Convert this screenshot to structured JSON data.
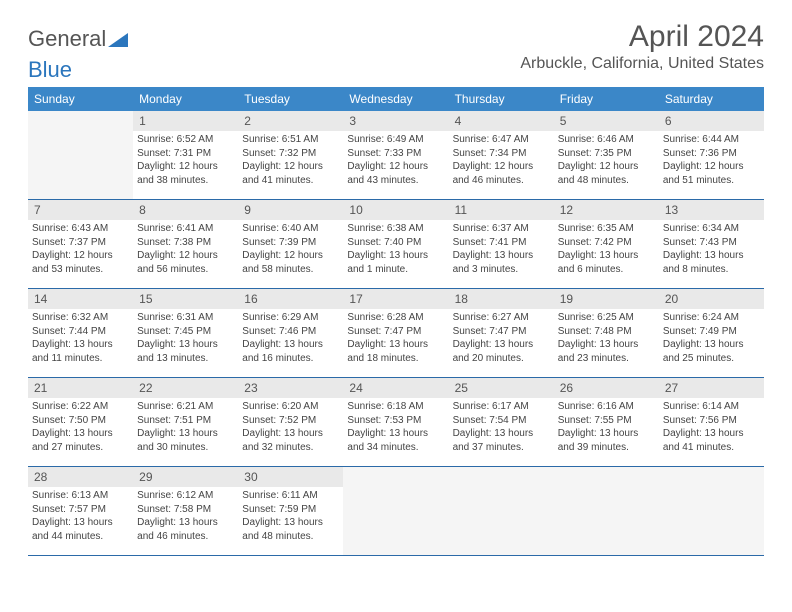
{
  "brand": {
    "part1": "General",
    "part2": "Blue"
  },
  "title": "April 2024",
  "location": "Arbuckle, California, United States",
  "dayHeaders": [
    "Sunday",
    "Monday",
    "Tuesday",
    "Wednesday",
    "Thursday",
    "Friday",
    "Saturday"
  ],
  "colors": {
    "header_bg": "#3b87c8",
    "header_text": "#ffffff",
    "daynum_bg": "#e9e9e9",
    "rule": "#2b6aa8",
    "brand_blue": "#2b76bd"
  },
  "calendar": {
    "leadingBlanks": 1,
    "daysInMonth": 30,
    "trailingBlanks": 4,
    "days": [
      {
        "n": 1,
        "sunrise": "6:52 AM",
        "sunset": "7:31 PM",
        "daylight": "12 hours and 38 minutes."
      },
      {
        "n": 2,
        "sunrise": "6:51 AM",
        "sunset": "7:32 PM",
        "daylight": "12 hours and 41 minutes."
      },
      {
        "n": 3,
        "sunrise": "6:49 AM",
        "sunset": "7:33 PM",
        "daylight": "12 hours and 43 minutes."
      },
      {
        "n": 4,
        "sunrise": "6:47 AM",
        "sunset": "7:34 PM",
        "daylight": "12 hours and 46 minutes."
      },
      {
        "n": 5,
        "sunrise": "6:46 AM",
        "sunset": "7:35 PM",
        "daylight": "12 hours and 48 minutes."
      },
      {
        "n": 6,
        "sunrise": "6:44 AM",
        "sunset": "7:36 PM",
        "daylight": "12 hours and 51 minutes."
      },
      {
        "n": 7,
        "sunrise": "6:43 AM",
        "sunset": "7:37 PM",
        "daylight": "12 hours and 53 minutes."
      },
      {
        "n": 8,
        "sunrise": "6:41 AM",
        "sunset": "7:38 PM",
        "daylight": "12 hours and 56 minutes."
      },
      {
        "n": 9,
        "sunrise": "6:40 AM",
        "sunset": "7:39 PM",
        "daylight": "12 hours and 58 minutes."
      },
      {
        "n": 10,
        "sunrise": "6:38 AM",
        "sunset": "7:40 PM",
        "daylight": "13 hours and 1 minute."
      },
      {
        "n": 11,
        "sunrise": "6:37 AM",
        "sunset": "7:41 PM",
        "daylight": "13 hours and 3 minutes."
      },
      {
        "n": 12,
        "sunrise": "6:35 AM",
        "sunset": "7:42 PM",
        "daylight": "13 hours and 6 minutes."
      },
      {
        "n": 13,
        "sunrise": "6:34 AM",
        "sunset": "7:43 PM",
        "daylight": "13 hours and 8 minutes."
      },
      {
        "n": 14,
        "sunrise": "6:32 AM",
        "sunset": "7:44 PM",
        "daylight": "13 hours and 11 minutes."
      },
      {
        "n": 15,
        "sunrise": "6:31 AM",
        "sunset": "7:45 PM",
        "daylight": "13 hours and 13 minutes."
      },
      {
        "n": 16,
        "sunrise": "6:29 AM",
        "sunset": "7:46 PM",
        "daylight": "13 hours and 16 minutes."
      },
      {
        "n": 17,
        "sunrise": "6:28 AM",
        "sunset": "7:47 PM",
        "daylight": "13 hours and 18 minutes."
      },
      {
        "n": 18,
        "sunrise": "6:27 AM",
        "sunset": "7:47 PM",
        "daylight": "13 hours and 20 minutes."
      },
      {
        "n": 19,
        "sunrise": "6:25 AM",
        "sunset": "7:48 PM",
        "daylight": "13 hours and 23 minutes."
      },
      {
        "n": 20,
        "sunrise": "6:24 AM",
        "sunset": "7:49 PM",
        "daylight": "13 hours and 25 minutes."
      },
      {
        "n": 21,
        "sunrise": "6:22 AM",
        "sunset": "7:50 PM",
        "daylight": "13 hours and 27 minutes."
      },
      {
        "n": 22,
        "sunrise": "6:21 AM",
        "sunset": "7:51 PM",
        "daylight": "13 hours and 30 minutes."
      },
      {
        "n": 23,
        "sunrise": "6:20 AM",
        "sunset": "7:52 PM",
        "daylight": "13 hours and 32 minutes."
      },
      {
        "n": 24,
        "sunrise": "6:18 AM",
        "sunset": "7:53 PM",
        "daylight": "13 hours and 34 minutes."
      },
      {
        "n": 25,
        "sunrise": "6:17 AM",
        "sunset": "7:54 PM",
        "daylight": "13 hours and 37 minutes."
      },
      {
        "n": 26,
        "sunrise": "6:16 AM",
        "sunset": "7:55 PM",
        "daylight": "13 hours and 39 minutes."
      },
      {
        "n": 27,
        "sunrise": "6:14 AM",
        "sunset": "7:56 PM",
        "daylight": "13 hours and 41 minutes."
      },
      {
        "n": 28,
        "sunrise": "6:13 AM",
        "sunset": "7:57 PM",
        "daylight": "13 hours and 44 minutes."
      },
      {
        "n": 29,
        "sunrise": "6:12 AM",
        "sunset": "7:58 PM",
        "daylight": "13 hours and 46 minutes."
      },
      {
        "n": 30,
        "sunrise": "6:11 AM",
        "sunset": "7:59 PM",
        "daylight": "13 hours and 48 minutes."
      }
    ]
  }
}
